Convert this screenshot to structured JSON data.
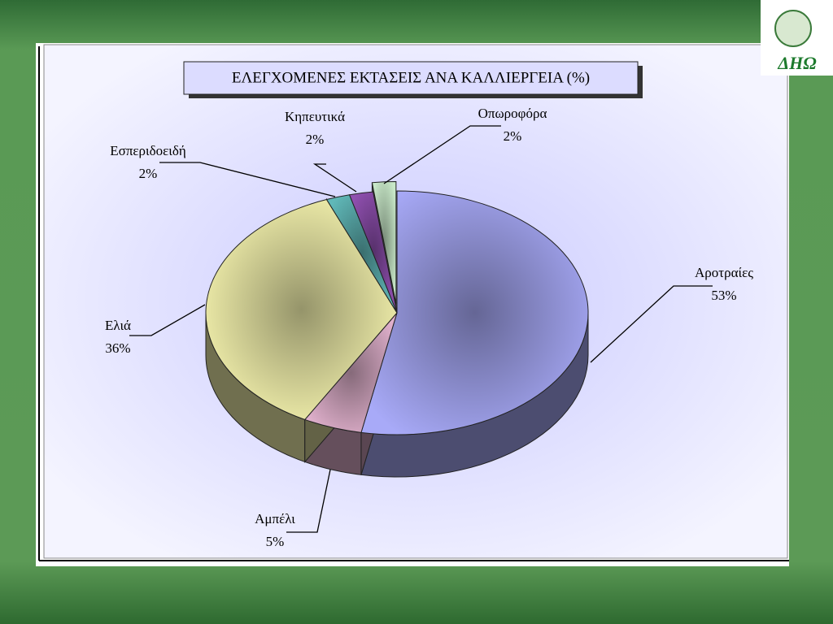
{
  "logo": "ΔΗΩ",
  "chart_data": {
    "type": "pie",
    "title": "ΕΛΕΓΧΟΜΕΝΕΣ ΕΚΤΑΣΕΙΣ ΑΝΑ ΚΑΛΛΙΕΡΓΕΙΑ (%)",
    "categories": [
      "Αροτραίες",
      "Αμπέλι",
      "Ελιά",
      "Εσπεριδοειδή",
      "Κηπευτικά",
      "Οπωροφόρα"
    ],
    "values": [
      53,
      5,
      36,
      2,
      2,
      2
    ],
    "value_labels": [
      "53%",
      "5%",
      "36%",
      "2%",
      "2%",
      "2%"
    ],
    "colors": [
      "#a8aaf8",
      "#e0b0cc",
      "#f8f6b0",
      "#60b8b8",
      "#9050b0",
      "#c8e8c8"
    ],
    "exploded": [
      false,
      false,
      false,
      false,
      false,
      true
    ]
  }
}
